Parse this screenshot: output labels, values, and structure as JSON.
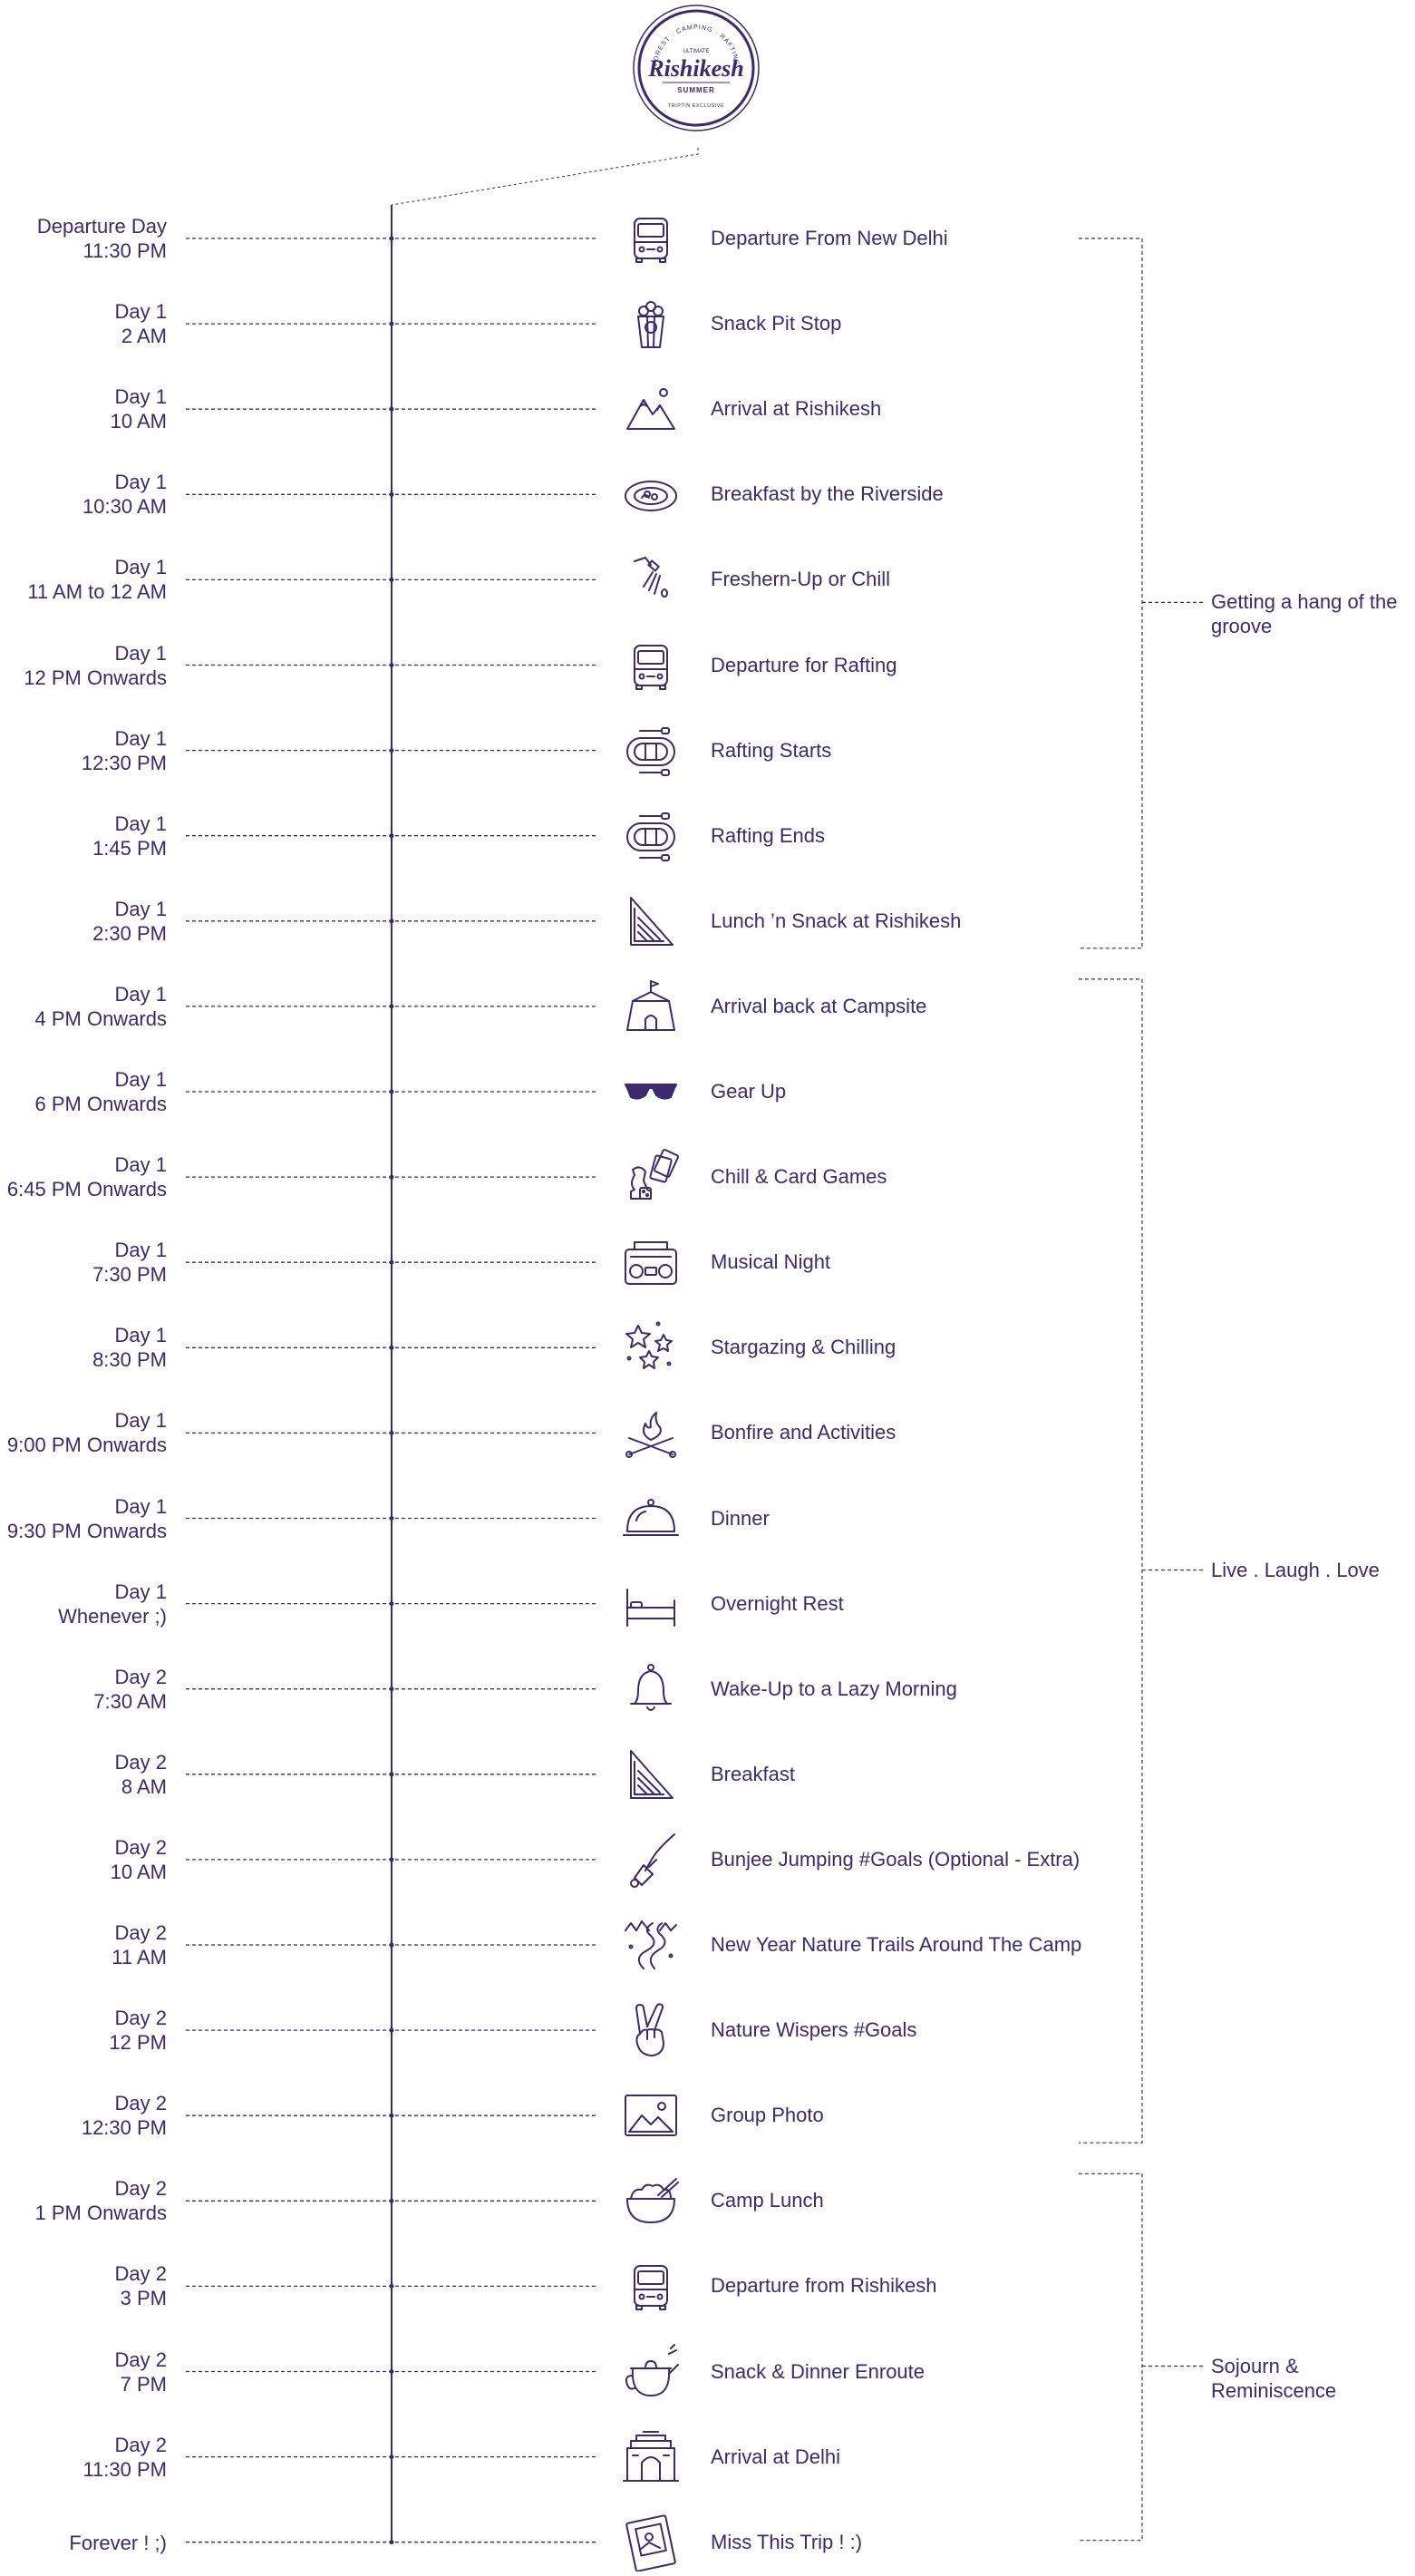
{
  "logo": {
    "top_text": "FOREST · CAMPING · RAFTING",
    "small_text": "ULTIMATE",
    "title": "Rishikesh",
    "season": "SUMMER",
    "bottom_text": "TRIPTIN EXCLUSIVE"
  },
  "timeline": [
    {
      "day": "Departure Day",
      "time": "11:30 PM",
      "activity": "Departure From New Delhi",
      "icon": "van-icon"
    },
    {
      "day": "Day 1",
      "time": "2 AM",
      "activity": "Snack Pit Stop",
      "icon": "popcorn-icon"
    },
    {
      "day": "Day 1",
      "time": "10 AM",
      "activity": "Arrival at Rishikesh",
      "icon": "mountains-icon"
    },
    {
      "day": "Day 1",
      "time": "10:30 AM",
      "activity": "Breakfast by the Riverside",
      "icon": "plate-icon"
    },
    {
      "day": "Day 1",
      "time": "11 AM to 12 AM",
      "activity": "Freshern-Up or Chill",
      "icon": "shower-icon"
    },
    {
      "day": "Day 1",
      "time": "12 PM Onwards",
      "activity": "Departure for Rafting",
      "icon": "van-icon"
    },
    {
      "day": "Day 1",
      "time": "12:30 PM",
      "activity": "Rafting Starts",
      "icon": "raft-icon"
    },
    {
      "day": "Day 1",
      "time": "1:45 PM",
      "activity": "Rafting Ends",
      "icon": "raft-icon"
    },
    {
      "day": "Day 1",
      "time": "2:30 PM",
      "activity": "Lunch ’n Snack at Rishikesh",
      "icon": "sandwich-icon"
    },
    {
      "day": "Day 1",
      "time": "4 PM Onwards",
      "activity": "Arrival back at Campsite",
      "icon": "tent-icon"
    },
    {
      "day": "Day 1",
      "time": "6 PM Onwards",
      "activity": "Gear Up",
      "icon": "sunglasses-icon"
    },
    {
      "day": "Day 1",
      "time": "6:45 PM Onwards",
      "activity": "Chill & Card Games",
      "icon": "chess-cards-icon"
    },
    {
      "day": "Day 1",
      "time": "7:30 PM",
      "activity": "Musical Night",
      "icon": "boombox-icon"
    },
    {
      "day": "Day 1",
      "time": "8:30 PM",
      "activity": "Stargazing & Chilling",
      "icon": "stars-icon"
    },
    {
      "day": "Day 1",
      "time": "9:00 PM Onwards",
      "activity": "Bonfire and Activities",
      "icon": "bonfire-icon"
    },
    {
      "day": "Day 1",
      "time": "9:30 PM Onwards",
      "activity": "Dinner",
      "icon": "cloche-icon"
    },
    {
      "day": "Day 1",
      "time": "Whenever ;)",
      "activity": "Overnight Rest",
      "icon": "bed-icon"
    },
    {
      "day": "Day 2",
      "time": "7:30 AM",
      "activity": "Wake-Up to a Lazy Morning",
      "icon": "bell-icon"
    },
    {
      "day": "Day 2",
      "time": "8 AM",
      "activity": "Breakfast",
      "icon": "sandwich-icon"
    },
    {
      "day": "Day 2",
      "time": "10 AM",
      "activity": "Bunjee Jumping #Goals (Optional - Extra)",
      "icon": "bungee-icon"
    },
    {
      "day": "Day 2",
      "time": "11 AM",
      "activity": "New Year Nature Trails Around The Camp",
      "icon": "trail-icon"
    },
    {
      "day": "Day 2",
      "time": "12 PM",
      "activity": "Nature Wispers #Goals",
      "icon": "peace-hand-icon"
    },
    {
      "day": "Day 2",
      "time": "12:30 PM",
      "activity": "Group Photo",
      "icon": "photo-icon"
    },
    {
      "day": "Day 2",
      "time": "1 PM Onwards",
      "activity": "Camp Lunch",
      "icon": "bowl-icon"
    },
    {
      "day": "Day 2",
      "time": "3 PM",
      "activity": "Departure from Rishikesh",
      "icon": "van-icon"
    },
    {
      "day": "Day 2",
      "time": "7 PM",
      "activity": "Snack & Dinner Enroute",
      "icon": "teapot-icon"
    },
    {
      "day": "Day 2",
      "time": "11:30 PM",
      "activity": "Arrival at Delhi",
      "icon": "india-gate-icon"
    },
    {
      "day": "",
      "time": "Forever ! ;)",
      "activity": "Miss This Trip ! :)",
      "icon": "postcard-icon"
    }
  ],
  "groups": [
    {
      "label": "Getting a hang of the groove",
      "from": 0,
      "to": 8
    },
    {
      "label": "Live . Laugh . Love",
      "from": 9,
      "to": 22
    },
    {
      "label": "Sojourn & Reminiscence",
      "from": 23,
      "to": 27
    }
  ],
  "colors": {
    "primary": "#3b2a6e"
  }
}
